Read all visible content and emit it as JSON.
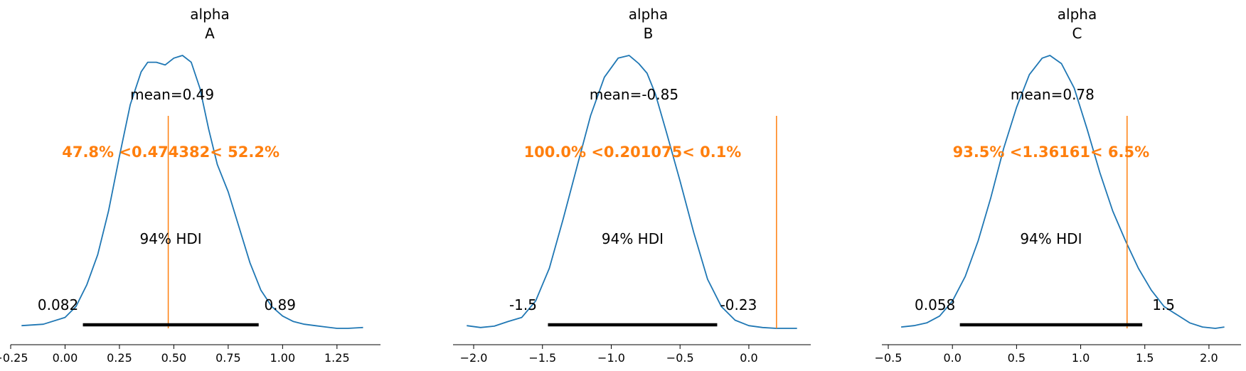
{
  "chart_data": [
    {
      "type": "density",
      "title": [
        "alpha",
        "A"
      ],
      "mean_label": "mean=0.49",
      "hdi_label": "94% HDI",
      "hdi": [
        0.082,
        0.89
      ],
      "hdi_labels": [
        "0.082",
        "0.89"
      ],
      "ref_value": 0.474382,
      "ref_label": "47.8% <0.474382< 52.2%",
      "xlim": [
        -0.25,
        1.45
      ],
      "xticks": [
        -0.25,
        0.0,
        0.25,
        0.5,
        0.75,
        1.0,
        1.25
      ],
      "xtick_labels": [
        "−0.25",
        "0.00",
        "0.25",
        "0.50",
        "0.75",
        "1.00",
        "1.25"
      ],
      "ylim": [
        0,
        1.0
      ],
      "line_color": "#1f77b4",
      "ref_color": "#ff7f0e",
      "kde": [
        [
          -0.2,
          0.01
        ],
        [
          -0.1,
          0.015
        ],
        [
          0.0,
          0.04
        ],
        [
          0.05,
          0.08
        ],
        [
          0.1,
          0.16
        ],
        [
          0.15,
          0.27
        ],
        [
          0.2,
          0.43
        ],
        [
          0.25,
          0.63
        ],
        [
          0.3,
          0.82
        ],
        [
          0.35,
          0.94
        ],
        [
          0.38,
          0.975
        ],
        [
          0.42,
          0.975
        ],
        [
          0.46,
          0.965
        ],
        [
          0.5,
          0.99
        ],
        [
          0.54,
          1.0
        ],
        [
          0.58,
          0.975
        ],
        [
          0.62,
          0.88
        ],
        [
          0.66,
          0.73
        ],
        [
          0.7,
          0.6
        ],
        [
          0.75,
          0.5
        ],
        [
          0.8,
          0.37
        ],
        [
          0.85,
          0.24
        ],
        [
          0.9,
          0.14
        ],
        [
          0.95,
          0.08
        ],
        [
          1.0,
          0.045
        ],
        [
          1.05,
          0.025
        ],
        [
          1.1,
          0.015
        ],
        [
          1.15,
          0.01
        ],
        [
          1.2,
          0.005
        ],
        [
          1.25,
          0.0
        ],
        [
          1.3,
          0.0
        ],
        [
          1.37,
          0.003
        ]
      ]
    },
    {
      "type": "density",
      "title": [
        "alpha",
        "B"
      ],
      "mean_label": "mean=-0.85",
      "hdi_label": "94% HDI",
      "hdi": [
        -1.46,
        -0.23
      ],
      "hdi_labels": [
        "-1.5",
        "-0.23"
      ],
      "ref_value": 0.201075,
      "ref_label": "100.0% <0.201075< 0.1%",
      "xlim": [
        -2.15,
        0.45
      ],
      "xticks": [
        -2.0,
        -1.5,
        -1.0,
        -0.5,
        0.0
      ],
      "xtick_labels": [
        "−2.0",
        "−1.5",
        "−1.0",
        "−0.5",
        "0.0"
      ],
      "ylim": [
        0,
        1.0
      ],
      "line_color": "#1f77b4",
      "ref_color": "#ff7f0e",
      "kde": [
        [
          -2.05,
          0.01
        ],
        [
          -1.95,
          0.003
        ],
        [
          -1.85,
          0.008
        ],
        [
          -1.75,
          0.025
        ],
        [
          -1.65,
          0.04
        ],
        [
          -1.55,
          0.1
        ],
        [
          -1.45,
          0.22
        ],
        [
          -1.35,
          0.4
        ],
        [
          -1.25,
          0.59
        ],
        [
          -1.15,
          0.78
        ],
        [
          -1.05,
          0.92
        ],
        [
          -0.95,
          0.99
        ],
        [
          -0.87,
          1.0
        ],
        [
          -0.8,
          0.97
        ],
        [
          -0.74,
          0.935
        ],
        [
          -0.68,
          0.86
        ],
        [
          -0.6,
          0.72
        ],
        [
          -0.5,
          0.54
        ],
        [
          -0.4,
          0.35
        ],
        [
          -0.3,
          0.18
        ],
        [
          -0.2,
          0.08
        ],
        [
          -0.1,
          0.03
        ],
        [
          0.0,
          0.01
        ],
        [
          0.1,
          0.003
        ],
        [
          0.2,
          0.0
        ],
        [
          0.35,
          0.0
        ]
      ]
    },
    {
      "type": "density",
      "title": [
        "alpha",
        "C"
      ],
      "mean_label": "mean=0.78",
      "hdi_label": "94% HDI",
      "hdi": [
        0.058,
        1.48
      ],
      "hdi_labels": [
        "0.058",
        "1.5"
      ],
      "ref_value": 1.36161,
      "ref_label": "93.5% <1.36161< 6.5%",
      "xlim": [
        -0.55,
        2.25
      ],
      "xticks": [
        -0.5,
        0.0,
        0.5,
        1.0,
        1.5,
        2.0
      ],
      "xtick_labels": [
        "−0.5",
        "0.0",
        "0.5",
        "1.0",
        "1.5",
        "2.0"
      ],
      "ylim": [
        0,
        1.0
      ],
      "line_color": "#1f77b4",
      "ref_color": "#ff7f0e",
      "kde": [
        [
          -0.4,
          0.005
        ],
        [
          -0.3,
          0.01
        ],
        [
          -0.2,
          0.02
        ],
        [
          -0.1,
          0.045
        ],
        [
          0.0,
          0.1
        ],
        [
          0.1,
          0.19
        ],
        [
          0.2,
          0.32
        ],
        [
          0.3,
          0.48
        ],
        [
          0.4,
          0.66
        ],
        [
          0.5,
          0.81
        ],
        [
          0.6,
          0.93
        ],
        [
          0.7,
          0.99
        ],
        [
          0.76,
          1.0
        ],
        [
          0.85,
          0.97
        ],
        [
          0.95,
          0.88
        ],
        [
          1.05,
          0.73
        ],
        [
          1.15,
          0.57
        ],
        [
          1.25,
          0.43
        ],
        [
          1.35,
          0.32
        ],
        [
          1.45,
          0.22
        ],
        [
          1.55,
          0.14
        ],
        [
          1.65,
          0.08
        ],
        [
          1.75,
          0.05
        ],
        [
          1.85,
          0.02
        ],
        [
          1.95,
          0.005
        ],
        [
          2.05,
          0.0
        ],
        [
          2.12,
          0.005
        ]
      ]
    }
  ]
}
